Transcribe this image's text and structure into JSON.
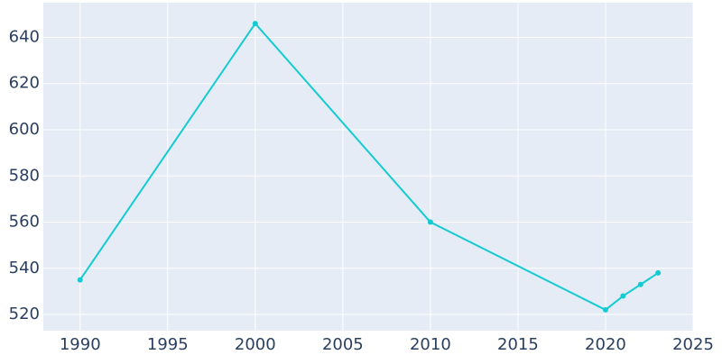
{
  "chart_data": {
    "type": "line",
    "x": [
      1990,
      2000,
      2010,
      2020,
      2021,
      2022,
      2023
    ],
    "series": [
      {
        "color": "#14cbd1",
        "values": [
          535,
          646,
          560,
          522,
          528,
          533,
          538
        ]
      }
    ],
    "xlim": [
      1987.9,
      2025
    ],
    "xticks": [
      1990,
      1995,
      2000,
      2005,
      2010,
      2015,
      2020,
      2025
    ],
    "ylim": [
      513,
      655
    ],
    "yticks": [
      520,
      540,
      560,
      580,
      600,
      620,
      640
    ],
    "grid": true,
    "plot_bg": "#e5ecf6"
  }
}
